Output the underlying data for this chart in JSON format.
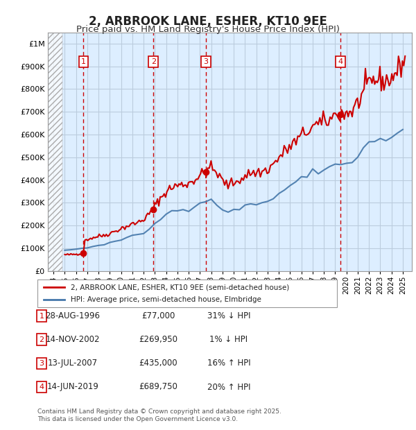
{
  "title": "2, ARBROOK LANE, ESHER, KT10 9EE",
  "subtitle": "Price paid vs. HM Land Registry's House Price Index (HPI)",
  "sales": [
    {
      "date_num": 1996.66,
      "price": 77000,
      "label": "1"
    },
    {
      "date_num": 2002.87,
      "price": 269950,
      "label": "2"
    },
    {
      "date_num": 2007.53,
      "price": 435000,
      "label": "3"
    },
    {
      "date_num": 2019.45,
      "price": 689750,
      "label": "4"
    }
  ],
  "sale_color": "#cc0000",
  "hpi_color": "#6699cc",
  "hpi_line_color": "#4477aa",
  "background_color": "#ddeeff",
  "hatch_color": "#bbccdd",
  "grid_color": "#aabbcc",
  "vline_color": "#cc0000",
  "xlim": [
    1993.5,
    2025.8
  ],
  "ylim": [
    0,
    1050000
  ],
  "yticks": [
    0,
    100000,
    200000,
    300000,
    400000,
    500000,
    600000,
    700000,
    800000,
    900000,
    1000000
  ],
  "ytick_labels": [
    "£0",
    "£100K",
    "£200K",
    "£300K",
    "£400K",
    "£500K",
    "£600K",
    "£700K",
    "£800K",
    "£900K",
    "£1M"
  ],
  "xticks": [
    1994,
    1995,
    1996,
    1997,
    1998,
    1999,
    2000,
    2001,
    2002,
    2003,
    2004,
    2005,
    2006,
    2007,
    2008,
    2009,
    2010,
    2011,
    2012,
    2013,
    2014,
    2015,
    2016,
    2017,
    2018,
    2019,
    2020,
    2021,
    2022,
    2023,
    2024,
    2025
  ],
  "table_entries": [
    {
      "num": "1",
      "date": "28-AUG-1996",
      "price": "£77,000",
      "rel": "31% ↓ HPI"
    },
    {
      "num": "2",
      "date": "14-NOV-2002",
      "price": "£269,950",
      "rel": "1% ↓ HPI"
    },
    {
      "num": "3",
      "date": "13-JUL-2007",
      "price": "£435,000",
      "rel": "16% ↑ HPI"
    },
    {
      "num": "4",
      "date": "14-JUN-2019",
      "price": "£689,750",
      "rel": "20% ↑ HPI"
    }
  ],
  "legend_entries": [
    "2, ARBROOK LANE, ESHER, KT10 9EE (semi-detached house)",
    "HPI: Average price, semi-detached house, Elmbridge"
  ],
  "footer": "Contains HM Land Registry data © Crown copyright and database right 2025.\nThis data is licensed under the Open Government Licence v3.0."
}
